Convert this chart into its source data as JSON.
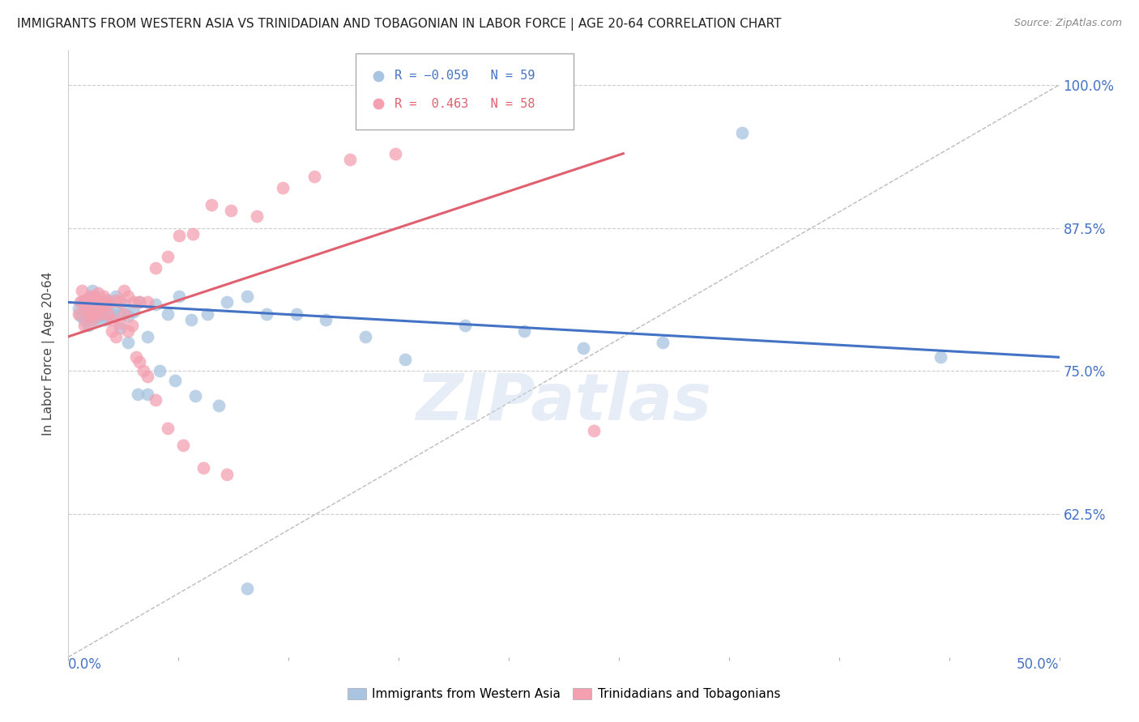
{
  "title": "IMMIGRANTS FROM WESTERN ASIA VS TRINIDADIAN AND TOBAGONIAN IN LABOR FORCE | AGE 20-64 CORRELATION CHART",
  "source": "Source: ZipAtlas.com",
  "ylabel": "In Labor Force | Age 20-64",
  "ytick_values": [
    0.625,
    0.75,
    0.875,
    1.0
  ],
  "ytick_labels": [
    "62.5%",
    "75.0%",
    "87.5%",
    "100.0%"
  ],
  "xlim": [
    0.0,
    0.5
  ],
  "ylim": [
    0.5,
    1.03
  ],
  "blue_color": "#a8c4e0",
  "pink_color": "#f4a0b0",
  "blue_line_color": "#4472c4",
  "pink_line_color": "#e06070",
  "watermark": "ZIPatlas",
  "blue_scatter_x": [
    0.005,
    0.006,
    0.007,
    0.008,
    0.009,
    0.01,
    0.011,
    0.012,
    0.013,
    0.014,
    0.015,
    0.016,
    0.017,
    0.018,
    0.019,
    0.02,
    0.022,
    0.024,
    0.026,
    0.028,
    0.03,
    0.033,
    0.036,
    0.04,
    0.044,
    0.05,
    0.056,
    0.062,
    0.07,
    0.08,
    0.09,
    0.1,
    0.115,
    0.13,
    0.15,
    0.17,
    0.2,
    0.23,
    0.26,
    0.3,
    0.008,
    0.01,
    0.012,
    0.014,
    0.016,
    0.018,
    0.02,
    0.023,
    0.026,
    0.03,
    0.035,
    0.04,
    0.046,
    0.054,
    0.064,
    0.076,
    0.09,
    0.34,
    0.44
  ],
  "blue_scatter_y": [
    0.805,
    0.798,
    0.81,
    0.795,
    0.802,
    0.808,
    0.8,
    0.815,
    0.803,
    0.797,
    0.81,
    0.805,
    0.8,
    0.808,
    0.795,
    0.812,
    0.8,
    0.815,
    0.8,
    0.808,
    0.798,
    0.802,
    0.81,
    0.78,
    0.808,
    0.8,
    0.815,
    0.795,
    0.8,
    0.81,
    0.815,
    0.8,
    0.8,
    0.795,
    0.78,
    0.76,
    0.79,
    0.785,
    0.77,
    0.775,
    0.81,
    0.79,
    0.82,
    0.795,
    0.81,
    0.798,
    0.8,
    0.805,
    0.788,
    0.775,
    0.73,
    0.73,
    0.75,
    0.742,
    0.728,
    0.72,
    0.56,
    0.958,
    0.762
  ],
  "pink_scatter_x": [
    0.005,
    0.006,
    0.007,
    0.008,
    0.009,
    0.01,
    0.011,
    0.012,
    0.013,
    0.014,
    0.015,
    0.016,
    0.017,
    0.018,
    0.019,
    0.02,
    0.022,
    0.024,
    0.026,
    0.028,
    0.03,
    0.033,
    0.036,
    0.04,
    0.044,
    0.05,
    0.056,
    0.063,
    0.072,
    0.082,
    0.095,
    0.108,
    0.124,
    0.142,
    0.165,
    0.008,
    0.01,
    0.012,
    0.014,
    0.016,
    0.018,
    0.02,
    0.022,
    0.024,
    0.026,
    0.028,
    0.03,
    0.032,
    0.034,
    0.036,
    0.038,
    0.04,
    0.044,
    0.05,
    0.058,
    0.068,
    0.08,
    0.265
  ],
  "pink_scatter_y": [
    0.8,
    0.81,
    0.82,
    0.812,
    0.805,
    0.808,
    0.815,
    0.8,
    0.815,
    0.81,
    0.818,
    0.8,
    0.808,
    0.815,
    0.812,
    0.808,
    0.795,
    0.812,
    0.81,
    0.82,
    0.815,
    0.81,
    0.81,
    0.81,
    0.84,
    0.85,
    0.868,
    0.87,
    0.895,
    0.89,
    0.885,
    0.91,
    0.92,
    0.935,
    0.94,
    0.79,
    0.798,
    0.795,
    0.802,
    0.81,
    0.808,
    0.8,
    0.785,
    0.78,
    0.792,
    0.8,
    0.785,
    0.79,
    0.762,
    0.758,
    0.75,
    0.745,
    0.725,
    0.7,
    0.685,
    0.665,
    0.66,
    0.698
  ],
  "blue_trend_x": [
    0.0,
    0.5
  ],
  "blue_trend_y": [
    0.81,
    0.762
  ],
  "pink_trend_x": [
    0.0,
    0.28
  ],
  "pink_trend_y": [
    0.78,
    0.94
  ],
  "diag_line_x": [
    0.0,
    0.5
  ],
  "diag_line_y": [
    0.5,
    1.0
  ]
}
